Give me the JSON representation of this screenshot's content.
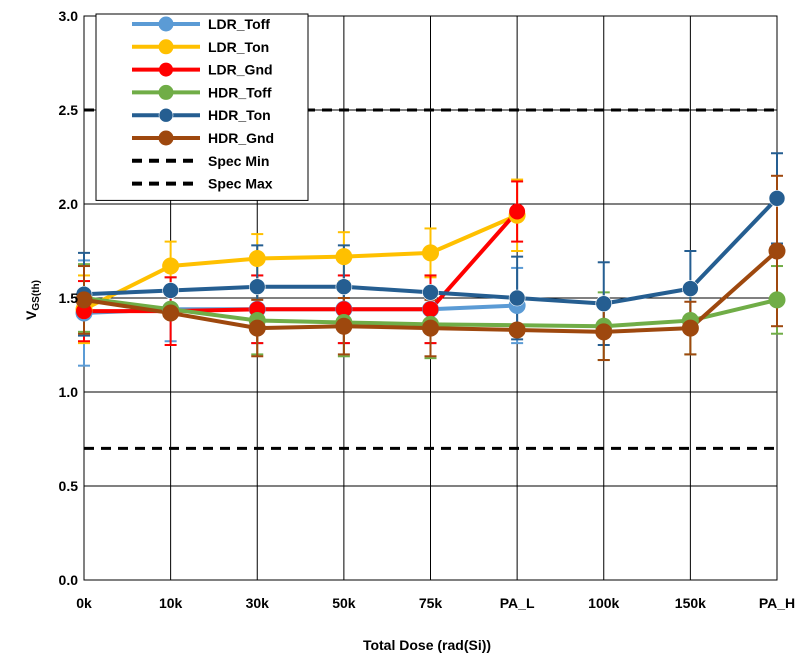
{
  "chart_data": {
    "type": "line",
    "categories": [
      "0k",
      "10k",
      "30k",
      "50k",
      "75k",
      "PA_L",
      "100k",
      "150k",
      "PA_H"
    ],
    "xlabel": "Total Dose (rad(Si))",
    "ylabel_main": "V",
    "ylabel_sub": "GS(th)",
    "ylim": [
      0.0,
      3.0
    ],
    "yticks": [
      "0.0",
      "0.5",
      "1.0",
      "1.5",
      "2.0",
      "2.5",
      "3.0"
    ],
    "ytick_values": [
      0.0,
      0.5,
      1.0,
      1.5,
      2.0,
      2.5,
      3.0
    ],
    "grid": true,
    "legend_position": "top-left",
    "series": [
      {
        "name": "LDR_Toff",
        "color": "#5b9bd5",
        "marker": "circle",
        "values": [
          1.42,
          1.44,
          1.44,
          1.44,
          1.44,
          1.46,
          null,
          null,
          null
        ],
        "err": [
          0.28,
          0.17,
          0.18,
          0.18,
          0.18,
          0.2,
          null,
          null,
          null
        ]
      },
      {
        "name": "LDR_Ton",
        "color": "#ffc000",
        "marker": "circle",
        "values": [
          1.44,
          1.67,
          1.71,
          1.72,
          1.74,
          1.94,
          null,
          null,
          null
        ],
        "err": [
          0.18,
          0.13,
          0.13,
          0.13,
          0.13,
          0.19,
          null,
          null,
          null
        ]
      },
      {
        "name": "LDR_Gnd",
        "color": "#ff0000",
        "marker": "circle-open",
        "values": [
          1.43,
          1.43,
          1.44,
          1.44,
          1.44,
          1.96,
          null,
          null,
          null
        ],
        "err": [
          0.16,
          0.18,
          0.18,
          0.18,
          0.18,
          0.16,
          null,
          null,
          null
        ]
      },
      {
        "name": "HDR_Toff",
        "color": "#70ad47",
        "marker": "circle",
        "values": [
          1.5,
          1.44,
          1.38,
          1.37,
          1.36,
          null,
          1.35,
          1.38,
          1.49
        ],
        "err": [
          0.18,
          null,
          0.18,
          0.18,
          0.18,
          null,
          0.18,
          0.18,
          0.18
        ]
      },
      {
        "name": "HDR_Ton",
        "color": "#255e91",
        "marker": "square",
        "values": [
          1.52,
          1.54,
          1.56,
          1.56,
          1.53,
          1.5,
          1.47,
          1.55,
          2.03
        ],
        "err": [
          0.22,
          null,
          0.22,
          0.22,
          null,
          0.22,
          0.22,
          0.2,
          0.24
        ]
      },
      {
        "name": "HDR_Gnd",
        "color": "#9e480e",
        "marker": "circle",
        "values": [
          1.49,
          1.42,
          1.34,
          1.35,
          1.34,
          1.33,
          1.32,
          1.34,
          1.75
        ],
        "err": [
          0.18,
          null,
          0.15,
          0.15,
          0.15,
          null,
          0.15,
          0.14,
          0.4
        ]
      }
    ],
    "reference_lines": [
      {
        "name": "Spec Min",
        "value": 0.7,
        "color": "#000000",
        "dash": true
      },
      {
        "name": "Spec Max",
        "value": 2.5,
        "color": "#000000",
        "dash": true
      }
    ]
  }
}
